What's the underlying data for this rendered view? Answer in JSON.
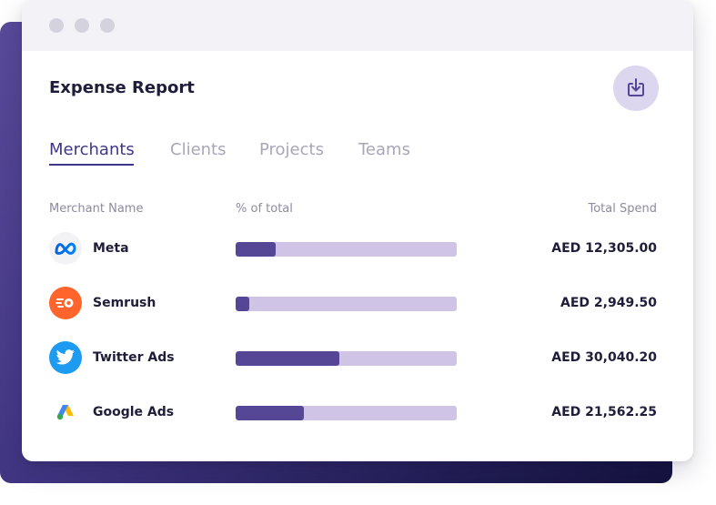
{
  "report": {
    "title": "Expense Report",
    "download_icon": "download-icon"
  },
  "tabs": [
    {
      "label": "Merchants",
      "active": true
    },
    {
      "label": "Clients",
      "active": false
    },
    {
      "label": "Projects",
      "active": false
    },
    {
      "label": "Teams",
      "active": false
    }
  ],
  "columns": {
    "merchant": "Merchant Name",
    "percent": "% of total",
    "spend": "Total Spend"
  },
  "merchants": [
    {
      "name": "Meta",
      "icon": "meta-logo-icon",
      "percent_fraction": 0.18,
      "spend": "AED 12,305.00"
    },
    {
      "name": "Semrush",
      "icon": "semrush-logo-icon",
      "percent_fraction": 0.06,
      "spend": "AED 2,949.50"
    },
    {
      "name": "Twitter Ads",
      "icon": "twitter-logo-icon",
      "percent_fraction": 0.47,
      "spend": "AED 30,040.20"
    },
    {
      "name": "Google Ads",
      "icon": "google-ads-logo-icon",
      "percent_fraction": 0.31,
      "spend": "AED 21,562.25"
    }
  ],
  "colors": {
    "accent": "#3e3687",
    "bar_fill": "#554796",
    "bar_track": "#cfc3e6",
    "semrush": "#ff642d",
    "twitter": "#1d9bf0"
  }
}
